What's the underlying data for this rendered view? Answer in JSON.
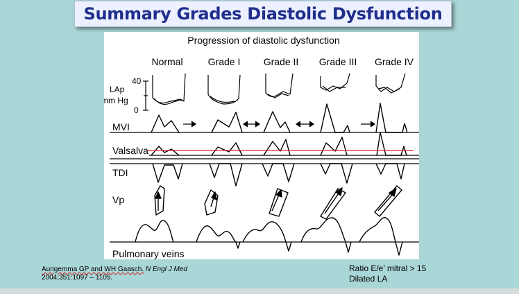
{
  "title": "Summary Grades Diastolic Dysfunction",
  "figure": {
    "heading": "Progression of diastolic dysfunction",
    "columns": [
      "Normal",
      "Grade I",
      "Grade II",
      "Grade III",
      "Grade IV"
    ],
    "pressure_axis": {
      "label_line1": "LAp",
      "label_line2": "mm Hg",
      "tick_top": "40",
      "tick_bottom": "0"
    },
    "rows": [
      "MVI",
      "Valsalva",
      "TDI",
      "Vp",
      "Pulmonary veins"
    ]
  },
  "citation": {
    "authors": "Aurigemma GP and WH Gaasch.",
    "journal": "N Engl J Med",
    "detail": "2004;351:1097 – 1105."
  },
  "notes": [
    "Ratio E/e’ mitral > 15",
    "Dilated LA"
  ],
  "colors": {
    "title_text": "#1f2e8c",
    "background": "#a9d6d6",
    "valsalva_line": "#e02020"
  }
}
